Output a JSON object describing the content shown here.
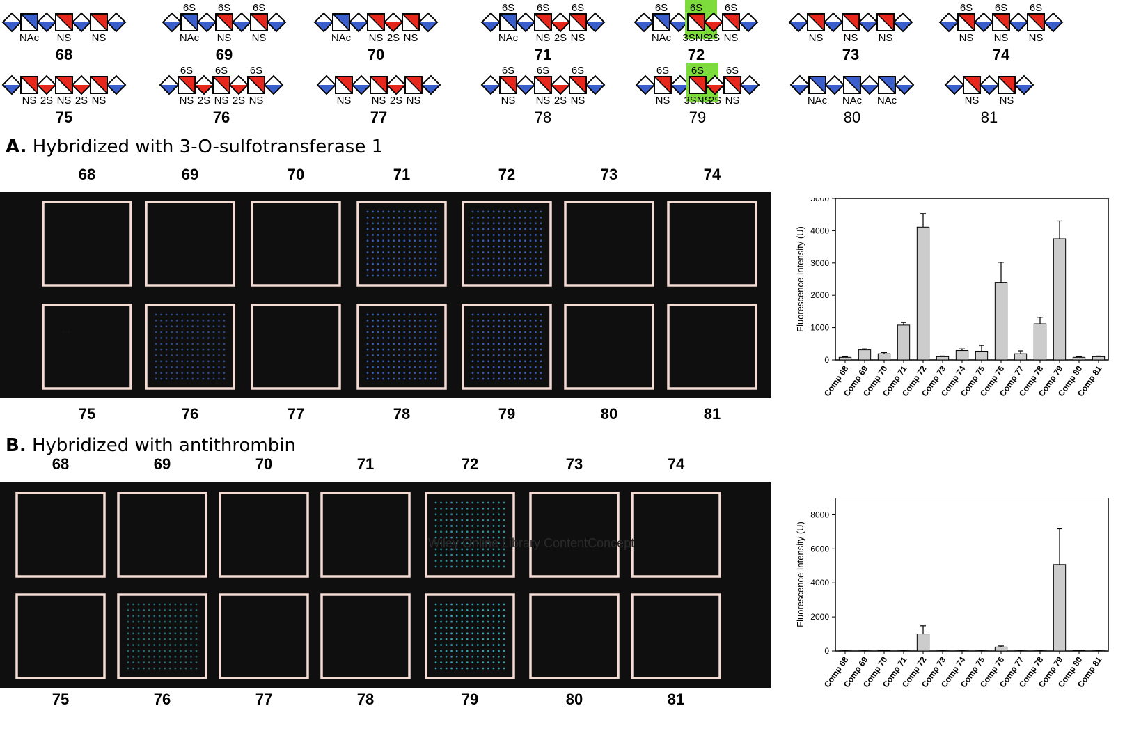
{
  "glycans": [
    {
      "id": "68",
      "residues": [
        "NAc",
        "NS",
        "NS"
      ],
      "six_s": [
        false,
        false,
        false
      ],
      "red_sugars": [
        false,
        true,
        true
      ],
      "three_s": [
        false,
        false,
        false
      ],
      "uronic_2s": [
        false,
        false
      ],
      "bold": true
    },
    {
      "id": "69",
      "residues": [
        "NAc",
        "NS",
        "NS"
      ],
      "six_s": [
        true,
        true,
        true
      ],
      "red_sugars": [
        false,
        true,
        true
      ],
      "three_s": [
        false,
        false,
        false
      ],
      "uronic_2s": [
        false,
        false
      ],
      "bold": true
    },
    {
      "id": "70",
      "residues": [
        "NAc",
        "NS",
        "NS"
      ],
      "six_s": [
        false,
        false,
        false
      ],
      "red_sugars": [
        false,
        true,
        true
      ],
      "three_s": [
        false,
        false,
        false
      ],
      "uronic_2s": [
        false,
        true
      ],
      "bold": true
    },
    {
      "id": "71",
      "residues": [
        "NAc",
        "NS",
        "NS"
      ],
      "six_s": [
        true,
        true,
        true
      ],
      "red_sugars": [
        false,
        true,
        true
      ],
      "three_s": [
        false,
        false,
        false
      ],
      "uronic_2s": [
        false,
        true
      ],
      "bold": true
    },
    {
      "id": "72",
      "residues": [
        "NAc",
        "NS",
        "NS"
      ],
      "six_s": [
        true,
        true,
        true
      ],
      "red_sugars": [
        false,
        true,
        true
      ],
      "three_s": [
        false,
        true,
        false
      ],
      "uronic_2s": [
        false,
        true
      ],
      "bold": true
    },
    {
      "id": "73",
      "residues": [
        "NS",
        "NS",
        "NS"
      ],
      "six_s": [
        false,
        false,
        false
      ],
      "red_sugars": [
        true,
        true,
        true
      ],
      "three_s": [
        false,
        false,
        false
      ],
      "uronic_2s": [
        false,
        false
      ],
      "bold": true
    },
    {
      "id": "74",
      "residues": [
        "NS",
        "NS",
        "NS"
      ],
      "six_s": [
        true,
        true,
        true
      ],
      "red_sugars": [
        true,
        true,
        true
      ],
      "three_s": [
        false,
        false,
        false
      ],
      "uronic_2s": [
        false,
        false
      ],
      "bold": true
    },
    {
      "id": "75",
      "residues": [
        "NS",
        "NS",
        "NS"
      ],
      "six_s": [
        false,
        false,
        false
      ],
      "red_sugars": [
        true,
        true,
        true
      ],
      "three_s": [
        false,
        false,
        false
      ],
      "uronic_2s": [
        true,
        true
      ],
      "bold": true
    },
    {
      "id": "76",
      "residues": [
        "NS",
        "NS",
        "NS"
      ],
      "six_s": [
        true,
        true,
        true
      ],
      "red_sugars": [
        true,
        true,
        true
      ],
      "three_s": [
        false,
        false,
        false
      ],
      "uronic_2s": [
        true,
        true
      ],
      "bold": true
    },
    {
      "id": "77",
      "residues": [
        "NS",
        "NS",
        "NS"
      ],
      "six_s": [
        false,
        false,
        false
      ],
      "red_sugars": [
        true,
        true,
        true
      ],
      "three_s": [
        false,
        false,
        false
      ],
      "uronic_2s": [
        false,
        true
      ],
      "bold": true
    },
    {
      "id": "78",
      "residues": [
        "NS",
        "NS",
        "NS"
      ],
      "six_s": [
        true,
        true,
        true
      ],
      "red_sugars": [
        true,
        true,
        true
      ],
      "three_s": [
        false,
        false,
        false
      ],
      "uronic_2s": [
        false,
        true
      ],
      "bold": false
    },
    {
      "id": "79",
      "residues": [
        "NS",
        "NS",
        "NS"
      ],
      "six_s": [
        true,
        true,
        true
      ],
      "red_sugars": [
        true,
        true,
        true
      ],
      "three_s": [
        false,
        true,
        false
      ],
      "uronic_2s": [
        false,
        true
      ],
      "bold": false
    },
    {
      "id": "80",
      "residues": [
        "NAc",
        "NAc",
        "NAc"
      ],
      "six_s": [
        false,
        false,
        false
      ],
      "red_sugars": [
        false,
        false,
        false
      ],
      "three_s": [
        false,
        false,
        false
      ],
      "uronic_2s": [
        false,
        false
      ],
      "bold": false
    },
    {
      "id": "81",
      "residues": [
        "NS",
        "NS"
      ],
      "six_s": [
        false,
        false
      ],
      "red_sugars": [
        true,
        true
      ],
      "three_s": [
        false,
        false
      ],
      "uronic_2s": [
        false
      ],
      "bold": false
    }
  ],
  "labels": {
    "six_s": "6S",
    "three_s": "3S",
    "two_s": "2S"
  },
  "colors": {
    "glcnac_blue": "#3a5fcd",
    "glcns_red": "#e8271c",
    "highlight": "#7ddc3c",
    "array_bg": "#0f0f0f",
    "well_border": "#f4dcd4",
    "bar": "#cccccc"
  },
  "panel_a": {
    "letter": "A.",
    "title": "Hybridized with 3-O-sulfotransferase 1",
    "top_labels": [
      "68",
      "69",
      "70",
      "71",
      "72",
      "73",
      "74"
    ],
    "bottom_labels": [
      "75",
      "76",
      "77",
      "78",
      "79",
      "80",
      "81"
    ],
    "spot_color": "#3f6fd8",
    "spot_intensity": [
      0,
      0,
      0,
      0.8,
      0.8,
      0,
      0,
      0.05,
      0.6,
      0,
      0.8,
      0.8,
      0,
      0
    ]
  },
  "panel_b": {
    "letter": "B.",
    "title": "Hybridized with antithrombin",
    "top_labels": [
      "68",
      "69",
      "70",
      "71",
      "72",
      "73",
      "74"
    ],
    "bottom_labels": [
      "75",
      "76",
      "77",
      "78",
      "79",
      "80",
      "81"
    ],
    "spot_color": "#3fc4d8",
    "spot_intensity": [
      0,
      0,
      0,
      0,
      0.7,
      0,
      0,
      0,
      0.5,
      0,
      0,
      0.8,
      0,
      0
    ],
    "watermark": "Wiley Online Library ContentConcept"
  },
  "chart_data": [
    {
      "type": "bar",
      "title": "",
      "xlabel": "",
      "ylabel": "Fluorescence Intensity (U)",
      "ylim": [
        0,
        5000
      ],
      "yticks": [
        0,
        1000,
        2000,
        3000,
        4000,
        5000
      ],
      "grid": false,
      "categories": [
        "Comp 68",
        "Comp 69",
        "Comp 70",
        "Comp 71",
        "Comp 72",
        "Comp 73",
        "Comp 74",
        "Comp 75",
        "Comp 76",
        "Comp 77",
        "Comp 78",
        "Comp 79",
        "Comp 80",
        "Comp 81"
      ],
      "values": [
        80,
        310,
        190,
        1080,
        4110,
        100,
        290,
        270,
        2400,
        190,
        1120,
        3750,
        80,
        100
      ],
      "errors": [
        20,
        30,
        40,
        80,
        420,
        20,
        50,
        180,
        620,
        90,
        200,
        550,
        20,
        20
      ]
    },
    {
      "type": "bar",
      "title": "",
      "xlabel": "",
      "ylabel": "Fluorescence Intensity (U)",
      "ylim": [
        0,
        9000
      ],
      "yticks": [
        0,
        2000,
        4000,
        6000,
        8000
      ],
      "grid": false,
      "categories": [
        "Comp 68",
        "Comp 69",
        "Comp 70",
        "Comp 71",
        "Comp 72",
        "Comp 73",
        "Comp 74",
        "Comp 75",
        "Comp 76",
        "Comp 77",
        "Comp 78",
        "Comp 79",
        "Comp 80",
        "Comp 81"
      ],
      "values": [
        10,
        10,
        20,
        10,
        1000,
        10,
        10,
        10,
        230,
        10,
        10,
        5080,
        30,
        10
      ],
      "errors": [
        5,
        5,
        5,
        5,
        480,
        5,
        5,
        5,
        60,
        5,
        5,
        2100,
        10,
        5
      ]
    }
  ]
}
